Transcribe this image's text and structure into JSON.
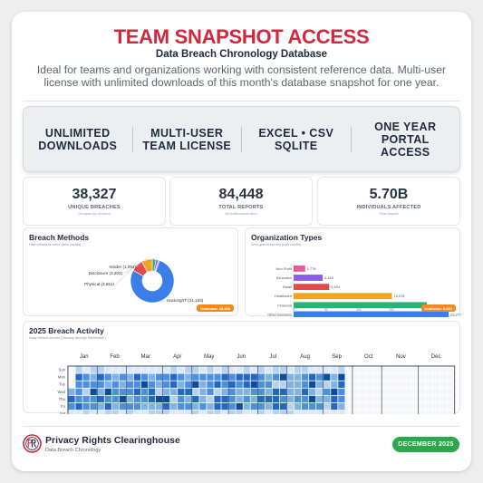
{
  "header": {
    "title": "TEAM SNAPSHOT ACCESS",
    "subtitle": "Data Breach Chronology Database",
    "description": "Ideal for teams and organizations working with consistent reference data. Multi-user license with unlimited downloads of this month's database snapshot for one year."
  },
  "features": [
    "UNLIMITED\nDOWNLOADS",
    "MULTI-USER\nTEAM LICENSE",
    "EXCEL • CSV\nSQLITE",
    "ONE YEAR\nPORTAL\nACCESS"
  ],
  "stats": [
    {
      "value": "38,327",
      "label": "UNIQUE BREACHES",
      "sub": "Grouped by incident",
      "color": "#e8599e"
    },
    {
      "value": "84,448",
      "label": "TOTAL REPORTS",
      "sub": "All notifications filed",
      "color": "#36b4e8"
    },
    {
      "value": "5.70B",
      "label": "INDIVIDUALS AFFECTED",
      "sub": "Total impact",
      "color": "#3cc88e"
    }
  ],
  "breach_methods": {
    "title": "Breach Methods",
    "subtitle": "How breaches occur (with counts)",
    "badge": "Unknown: 18,468"
  },
  "org_types": {
    "title": "Organization Types",
    "subtitle": "Who gets breached (with counts)",
    "badge": "Unknown: 9,823"
  },
  "activity": {
    "title": "2025 Breach Activity",
    "subtitle": "Daily breach reports (January through September)"
  },
  "footer": {
    "org_name": "Privacy Rights Clearinghouse",
    "org_sub": "Data Breach Chronology",
    "date": "DECEMBER 2025"
  },
  "chart_data": [
    {
      "type": "pie",
      "title": "Breach Methods",
      "slices": [
        {
          "label": "Hacking/IT",
          "value": 31163,
          "color": "#3a7ee8"
        },
        {
          "label": "Physical",
          "value": 3651,
          "color": "#e24b4b"
        },
        {
          "label": "Disclosure",
          "value": 3203,
          "color": "#f2a51e"
        },
        {
          "label": "Insider",
          "value": 1093,
          "color": "#27b37a"
        },
        {
          "label": "",
          "value": 700,
          "color": "#8a5ee8"
        },
        {
          "label": "",
          "value": 400,
          "color": "#e8599e"
        }
      ],
      "label_format": "{label} ({value})"
    },
    {
      "type": "bar",
      "orientation": "horizontal",
      "title": "Organization Types",
      "categories": [
        "Non-Profit",
        "Education",
        "Retail",
        "Healthcare",
        "Financial",
        "Other Business"
      ],
      "values": [
        1776,
        4448,
        5454,
        15078,
        20427,
        23772
      ],
      "colors": [
        "#e8599e",
        "#8a5ee8",
        "#e24b4b",
        "#f2a51e",
        "#27b37a",
        "#3a7ee8"
      ],
      "xlim": [
        0,
        25000
      ],
      "xticks": [
        "0",
        "5k",
        "10k",
        "15k",
        "20k"
      ]
    },
    {
      "type": "heatmap",
      "title": "2025 Breach Activity",
      "months": [
        "Jan",
        "Feb",
        "Mar",
        "Apr",
        "May",
        "Jun",
        "Jul",
        "Aug",
        "Sep",
        "Oct",
        "Nov",
        "Dec"
      ],
      "days": [
        "Sun",
        "Mon",
        "Tue",
        "Wed",
        "Thu",
        "Fri",
        "Sat"
      ],
      "active_weeks": 38,
      "total_weeks": 53,
      "palette": [
        "#f5f7fa",
        "#dbe8f8",
        "#b4d2f2",
        "#7fb1ea",
        "#4b8fe0",
        "#2266c8",
        "#0e4a9e"
      ]
    }
  ]
}
